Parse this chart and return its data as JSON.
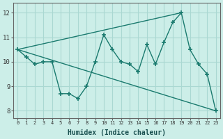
{
  "xlabel": "Humidex (Indice chaleur)",
  "bg_color": "#cceee8",
  "grid_color": "#aad8d2",
  "line_color": "#1a7a6e",
  "xlim": [
    -0.5,
    23.5
  ],
  "ylim": [
    7.7,
    12.4
  ],
  "yticks": [
    8,
    9,
    10,
    11,
    12
  ],
  "xticks": [
    0,
    1,
    2,
    3,
    4,
    5,
    6,
    7,
    8,
    9,
    10,
    11,
    12,
    13,
    14,
    15,
    16,
    17,
    18,
    19,
    20,
    21,
    22,
    23
  ],
  "line1_x": [
    0,
    1,
    2,
    3,
    4,
    5,
    6,
    7,
    8,
    9,
    10,
    11,
    12,
    13,
    14,
    15,
    16,
    17,
    18,
    19,
    20,
    21,
    22,
    23
  ],
  "line1_y": [
    10.5,
    10.2,
    9.9,
    10.0,
    10.0,
    8.7,
    8.7,
    8.5,
    9.0,
    10.0,
    11.1,
    10.5,
    10.0,
    9.9,
    9.6,
    10.7,
    9.9,
    10.8,
    11.6,
    12.0,
    10.5,
    9.9,
    9.5,
    8.0
  ],
  "line2_x": [
    0,
    23
  ],
  "line2_y": [
    10.5,
    8.0
  ],
  "line3_x": [
    0,
    19
  ],
  "line3_y": [
    10.5,
    12.0
  ]
}
